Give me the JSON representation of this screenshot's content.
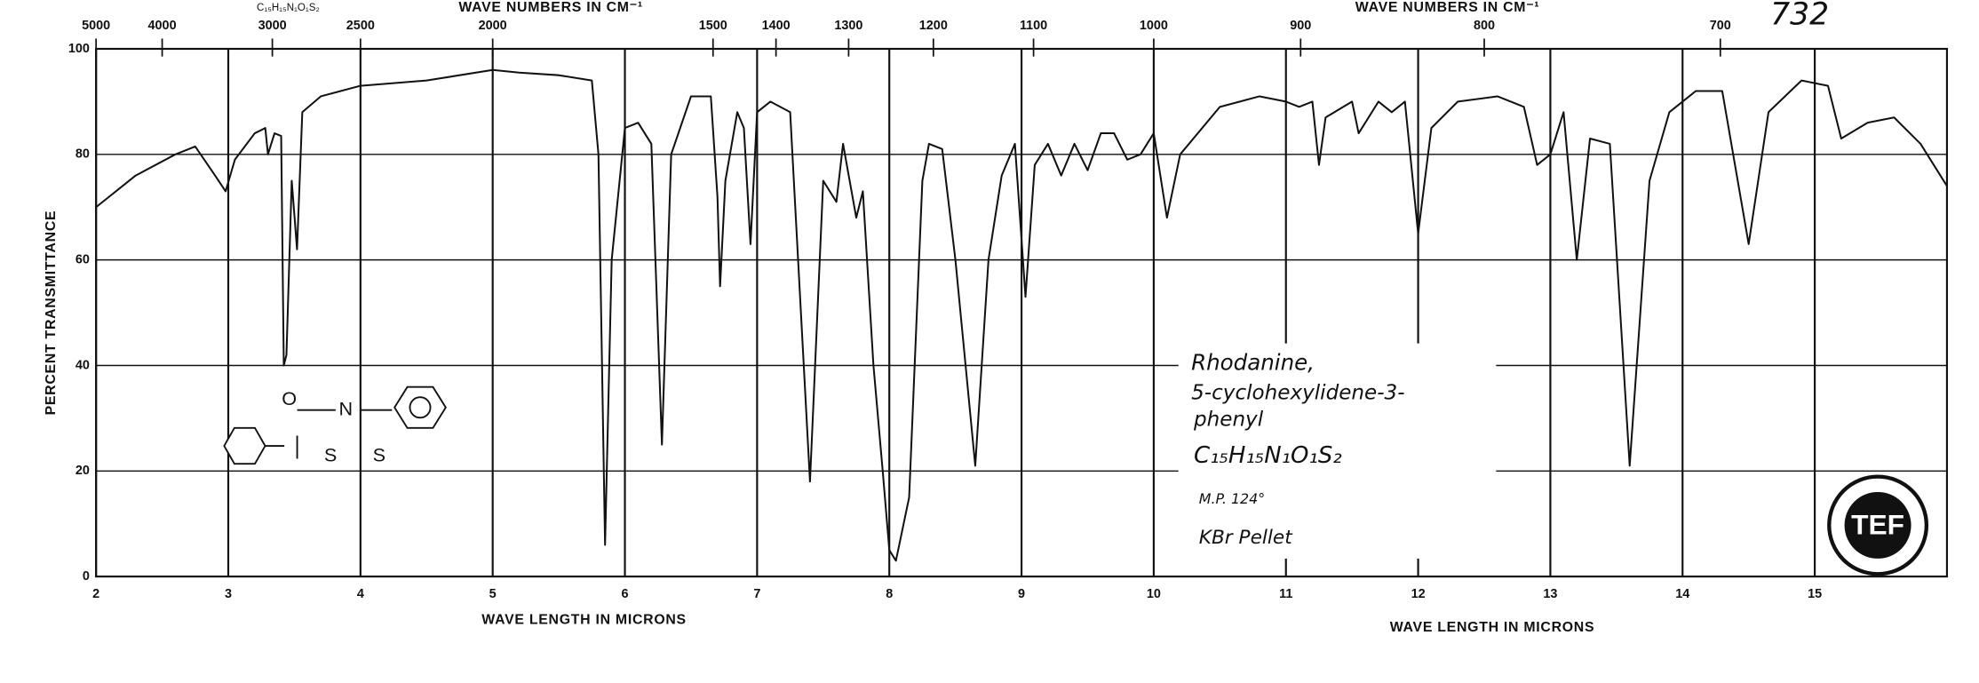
{
  "chart_data": {
    "type": "line",
    "title": "732",
    "formula_header": "C₁₅H₁₅N₁O₁S₂",
    "x_label": "WAVE LENGTH IN MICRONS",
    "x_label_right": "WAVE LENGTH IN MICRONS",
    "x2_label": "WAVE NUMBERS IN CM⁻¹",
    "x2_label_right": "WAVE NUMBERS IN CM⁻¹",
    "y_label": "PERCENT TRANSMITTANCE",
    "xlim": [
      2,
      16
    ],
    "ylim": [
      0,
      100
    ],
    "xticks": [
      2,
      3,
      4,
      5,
      6,
      7,
      8,
      9,
      10,
      11,
      12,
      13,
      14,
      15
    ],
    "x2ticks": [
      5000,
      4000,
      3000,
      2500,
      2000,
      1500,
      1400,
      1300,
      1200,
      1100,
      1000,
      900,
      800,
      700
    ],
    "yticks": [
      0,
      20,
      40,
      60,
      80,
      100
    ],
    "grid": true,
    "series": [
      {
        "color": "#111111",
        "x": [
          2.0,
          2.3,
          2.6,
          2.75,
          2.9,
          2.98,
          3.05,
          3.2,
          3.28,
          3.3,
          3.35,
          3.4,
          3.42,
          3.44,
          3.48,
          3.52,
          3.56,
          3.7,
          4.0,
          4.5,
          5.0,
          5.2,
          5.5,
          5.75,
          5.8,
          5.85,
          5.9,
          6.0,
          6.1,
          6.2,
          6.28,
          6.35,
          6.5,
          6.65,
          6.7,
          6.72,
          6.76,
          6.85,
          6.9,
          6.95,
          7.0,
          7.1,
          7.25,
          7.4,
          7.5,
          7.6,
          7.65,
          7.75,
          7.8,
          7.88,
          7.95,
          8.0,
          8.05,
          8.15,
          8.25,
          8.3,
          8.4,
          8.5,
          8.65,
          8.75,
          8.85,
          8.95,
          9.03,
          9.1,
          9.2,
          9.3,
          9.4,
          9.5,
          9.6,
          9.7,
          9.8,
          9.9,
          10.0,
          10.1,
          10.2,
          10.5,
          10.8,
          11.0,
          11.1,
          11.2,
          11.25,
          11.3,
          11.5,
          11.55,
          11.7,
          11.8,
          11.9,
          12.0,
          12.1,
          12.3,
          12.6,
          12.8,
          12.9,
          13.0,
          13.1,
          13.2,
          13.3,
          13.45,
          13.6,
          13.75,
          13.9,
          14.1,
          14.3,
          14.5,
          14.65,
          14.9,
          15.1,
          15.2,
          15.4,
          15.6,
          15.8,
          16.0
        ],
        "values": [
          70,
          76,
          80,
          81.5,
          76,
          73,
          79,
          84,
          85,
          80,
          84,
          83.5,
          40,
          42,
          75,
          62,
          88,
          91,
          93,
          94,
          96,
          95.5,
          95,
          94,
          80,
          6,
          60,
          85,
          86,
          82,
          25,
          80,
          91,
          91,
          72,
          55,
          75,
          88,
          85,
          63,
          88,
          90,
          88,
          18,
          75,
          71,
          82,
          68,
          73,
          40,
          20,
          5,
          3,
          15,
          75,
          82,
          81,
          60,
          21,
          60,
          76,
          82,
          53,
          78,
          82,
          76,
          82,
          77,
          84,
          84,
          79,
          80,
          84,
          68,
          80,
          89,
          91,
          90,
          89,
          90,
          78,
          87,
          90,
          84,
          90,
          88,
          90,
          65,
          85,
          90,
          91,
          89,
          78,
          80,
          88,
          60,
          83,
          82,
          21,
          75,
          88,
          92,
          92,
          63,
          88,
          94,
          93,
          83,
          86,
          87,
          82,
          74
        ]
      }
    ],
    "annotation": [
      "Rhodanine,",
      "5-cyclohexylidene-3-",
      "phenyl",
      "C₁₅H₁₅N₁O₁S₂",
      "M.P. 124°",
      "KBr Pellet"
    ],
    "structure_labels": [
      "O",
      "N",
      "S",
      "S"
    ],
    "logo": "TEF"
  }
}
